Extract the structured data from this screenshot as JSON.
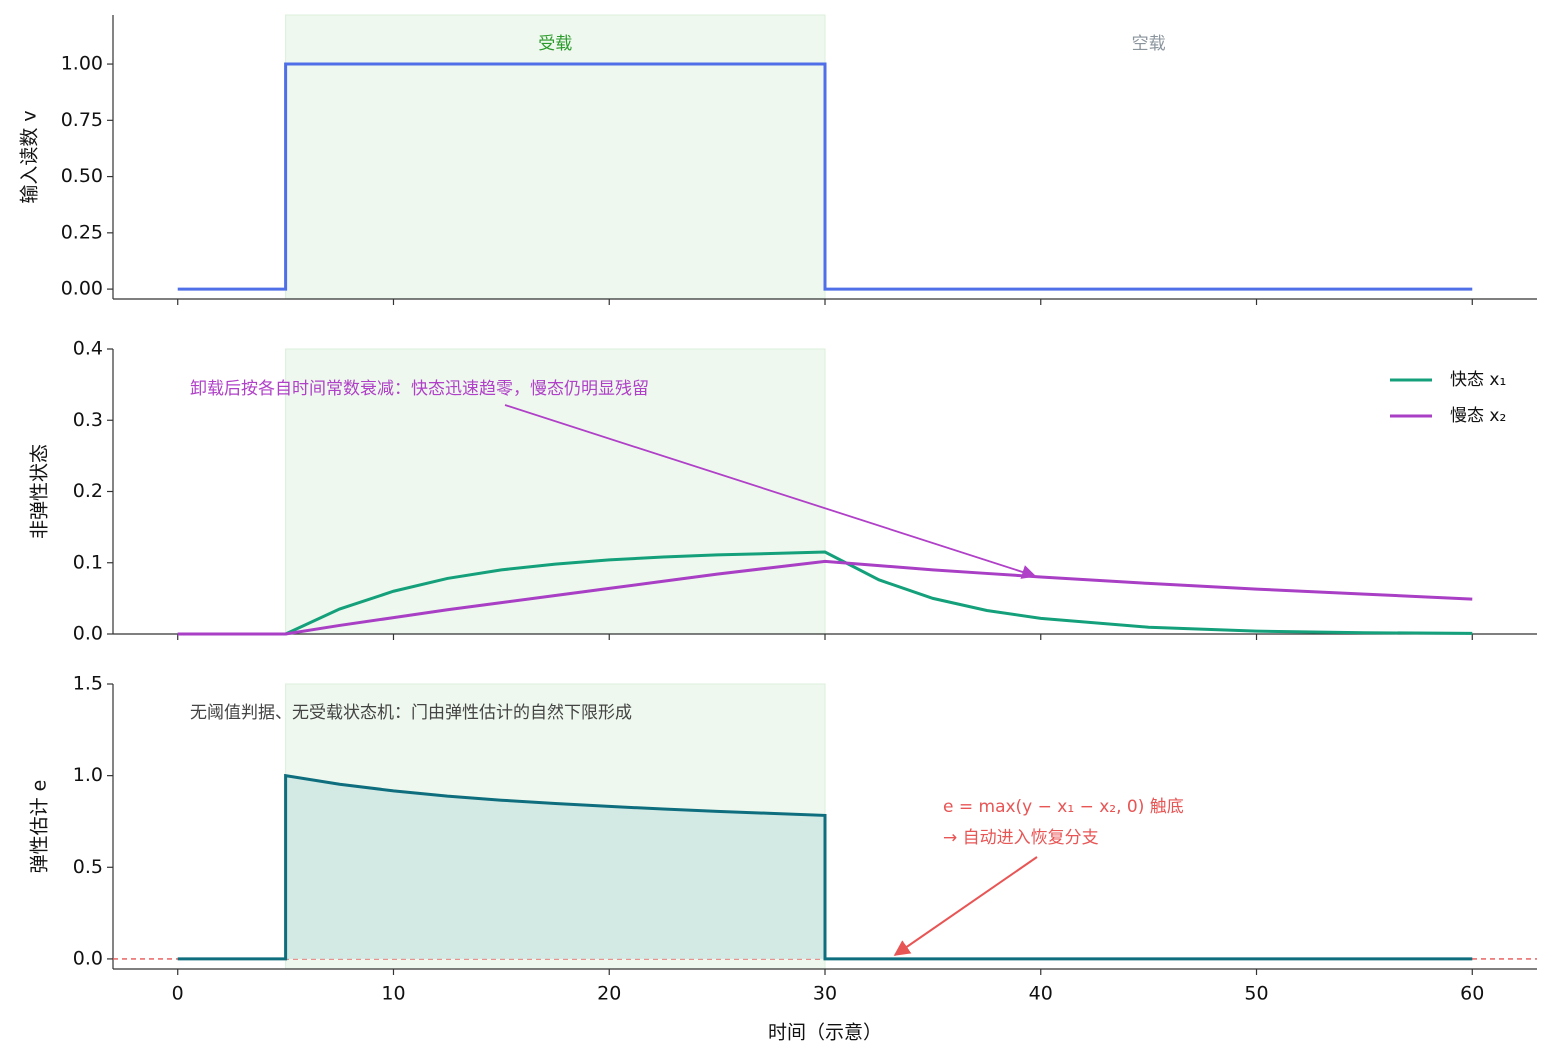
{
  "chart_data": [
    {
      "type": "line",
      "ylabel": "输入读数 v",
      "x": [
        0,
        5,
        5,
        30,
        30,
        60
      ],
      "series": [
        {
          "color": "#4f6fe8",
          "values": [
            0,
            0,
            1,
            1,
            0,
            0
          ]
        }
      ],
      "xlim": [
        -3,
        63
      ],
      "xticks": [
        0,
        10,
        20,
        30,
        40,
        50,
        60
      ],
      "ylim": [
        -0.044,
        1.218
      ],
      "yticks": [
        {
          "value": 0,
          "label": "0.00"
        },
        {
          "value": 0.25,
          "label": "0.25"
        },
        {
          "value": 0.5,
          "label": "0.50"
        },
        {
          "value": 0.75,
          "label": "0.75"
        },
        {
          "value": 1,
          "label": "1.00"
        }
      ],
      "regions": [
        {
          "name": "受载",
          "x": [
            5,
            30
          ],
          "shaded": true,
          "color": "#2a9a2a"
        },
        {
          "name": "空载",
          "x": [
            30,
            60
          ],
          "shaded": false,
          "color": "#8a949c"
        }
      ]
    },
    {
      "type": "line",
      "ylabel": "非弹性状态",
      "x": [
        0,
        5,
        7.5,
        10,
        12.5,
        15,
        17.5,
        20,
        22.5,
        25,
        27.5,
        30,
        32.5,
        35,
        37.5,
        40,
        45,
        50,
        55,
        60
      ],
      "series": [
        {
          "name": "快态 x₁",
          "color": "#14a07a",
          "values": [
            0,
            0,
            0.035,
            0.06,
            0.078,
            0.09,
            0.098,
            0.104,
            0.108,
            0.111,
            0.113,
            0.115,
            0.076,
            0.05,
            0.033,
            0.022,
            0.0095,
            0.004,
            0.0018,
            0.0008
          ]
        },
        {
          "name": "慢态 x₂",
          "color": "#a83fc4",
          "values": [
            0,
            0,
            0.012,
            0.023,
            0.034,
            0.044,
            0.054,
            0.064,
            0.074,
            0.084,
            0.093,
            0.102,
            0.096,
            0.09,
            0.085,
            0.08,
            0.071,
            0.063,
            0.056,
            0.049
          ]
        }
      ],
      "xlim": [
        -3,
        63
      ],
      "xticks": [
        0,
        10,
        20,
        30,
        40,
        50,
        60
      ],
      "ylim": [
        0,
        0.4
      ],
      "yticks": [
        {
          "value": 0,
          "label": "0.0"
        },
        {
          "value": 0.1,
          "label": "0.1"
        },
        {
          "value": 0.2,
          "label": "0.2"
        },
        {
          "value": 0.3,
          "label": "0.3"
        },
        {
          "value": 0.4,
          "label": "0.4"
        }
      ],
      "regions": [
        {
          "x": [
            5,
            30
          ],
          "shaded": true
        }
      ],
      "legend": "upper right",
      "annotations": [
        "卸载后按各自时间常数衰减：快态迅速趋零，慢态仍明显残留"
      ]
    },
    {
      "type": "area",
      "ylabel": "弹性估计 e",
      "xlabel": "时间（示意）",
      "x": [
        0,
        5,
        5,
        7.5,
        10,
        12.5,
        15,
        17.5,
        20,
        22.5,
        25,
        27.5,
        30,
        30,
        60
      ],
      "series": [
        {
          "color": "#0e6e7e",
          "fill": "#d3e9e4",
          "values": [
            0,
            0,
            1.0,
            0.953,
            0.917,
            0.888,
            0.866,
            0.848,
            0.832,
            0.818,
            0.805,
            0.794,
            0.783,
            0,
            0
          ]
        }
      ],
      "xlim": [
        -3,
        63
      ],
      "xticks": [
        0,
        10,
        20,
        30,
        40,
        50,
        60
      ],
      "ylim": [
        -0.055,
        1.5
      ],
      "yticks": [
        {
          "value": 0,
          "label": "0.0"
        },
        {
          "value": 0.5,
          "label": "0.5"
        },
        {
          "value": 1,
          "label": "1.0"
        },
        {
          "value": 1.5,
          "label": "1.5"
        }
      ],
      "regions": [
        {
          "x": [
            5,
            30
          ],
          "shaded": true
        }
      ],
      "hline": {
        "y": 0,
        "color": "#e85555",
        "style": "dashed"
      },
      "annotations": [
        "无阈值判据、无受载状态机：门由弹性估计的自然下限形成",
        "e = max(y − x₁ − x₂, 0) 触底",
        "→ 自动进入恢复分支"
      ]
    }
  ]
}
